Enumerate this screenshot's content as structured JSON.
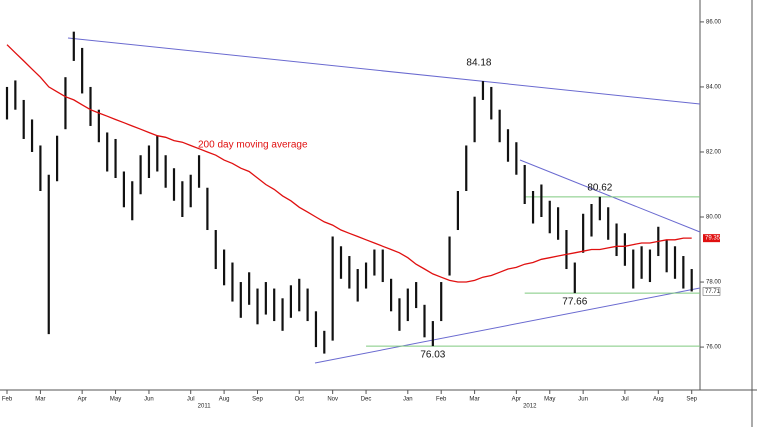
{
  "chart_data": {
    "type": "highlow",
    "categories": [
      "Feb",
      null,
      null,
      null,
      "Mar",
      null,
      null,
      null,
      null,
      "Apr",
      null,
      null,
      null,
      "May",
      null,
      null,
      null,
      "Jun",
      null,
      null,
      null,
      null,
      "Jul",
      null,
      null,
      null,
      "Aug",
      null,
      null,
      null,
      "Sep",
      null,
      null,
      null,
      null,
      "Oct",
      null,
      null,
      null,
      "Nov",
      null,
      null,
      null,
      "Dec",
      null,
      null,
      null,
      null,
      "Jan",
      null,
      null,
      null,
      "Feb",
      null,
      null,
      null,
      "Mar",
      null,
      null,
      null,
      null,
      "Apr",
      null,
      null,
      null,
      "May",
      null,
      null,
      null,
      "Jun",
      null,
      null,
      null,
      null,
      "Jul",
      null,
      null,
      null,
      "Aug",
      null,
      null,
      null,
      "Sep"
    ],
    "year_labels": [
      "2011",
      "2012"
    ],
    "high": [
      84.0,
      84.2,
      83.6,
      83.0,
      82.2,
      81.3,
      82.5,
      84.3,
      85.7,
      85.2,
      84.0,
      83.3,
      82.6,
      82.4,
      81.4,
      81.1,
      81.9,
      82.2,
      82.5,
      81.9,
      81.5,
      81.1,
      81.3,
      81.9,
      80.9,
      79.6,
      79.0,
      78.6,
      78.0,
      78.3,
      77.8,
      78.0,
      77.8,
      77.5,
      77.9,
      78.1,
      77.8,
      77.1,
      76.5,
      79.4,
      79.1,
      78.8,
      78.4,
      78.6,
      79.0,
      79.0,
      78.1,
      77.5,
      77.8,
      78.0,
      77.3,
      76.8,
      78.0,
      79.4,
      80.8,
      82.2,
      83.7,
      84.18,
      84.0,
      83.3,
      82.7,
      82.3,
      81.6,
      80.8,
      81.0,
      80.5,
      80.3,
      79.6,
      78.6,
      80.1,
      80.4,
      80.62,
      80.3,
      79.8,
      79.5,
      79.0,
      79.1,
      79.0,
      79.7,
      79.3,
      79.1,
      78.8,
      78.4
    ],
    "low": [
      83.0,
      83.3,
      82.4,
      82.0,
      80.8,
      76.4,
      81.1,
      82.7,
      84.8,
      83.8,
      82.8,
      82.3,
      81.4,
      81.2,
      80.3,
      79.9,
      80.7,
      81.2,
      81.4,
      80.9,
      80.5,
      80.0,
      80.3,
      80.9,
      79.6,
      78.4,
      77.9,
      77.4,
      76.9,
      77.3,
      76.7,
      77.0,
      76.8,
      76.5,
      76.9,
      77.1,
      76.8,
      76.0,
      75.8,
      76.2,
      78.1,
      77.8,
      77.4,
      77.8,
      78.2,
      78.0,
      77.1,
      76.5,
      76.8,
      77.2,
      76.3,
      76.03,
      76.8,
      78.2,
      79.6,
      80.8,
      82.3,
      83.6,
      83.0,
      82.3,
      81.7,
      81.3,
      80.4,
      79.8,
      80.0,
      79.5,
      79.3,
      78.4,
      77.66,
      78.9,
      79.4,
      79.9,
      79.3,
      78.8,
      78.5,
      77.8,
      78.1,
      78.0,
      78.8,
      78.3,
      78.1,
      77.8,
      77.71
    ],
    "series": [
      {
        "name": "200 day moving average",
        "color": "#e01010",
        "values": [
          85.3,
          85.05,
          84.8,
          84.55,
          84.3,
          84.0,
          83.85,
          83.7,
          83.6,
          83.45,
          83.3,
          83.2,
          83.1,
          83.0,
          82.9,
          82.8,
          82.7,
          82.6,
          82.5,
          82.45,
          82.35,
          82.3,
          82.2,
          82.1,
          82.0,
          81.9,
          81.75,
          81.65,
          81.5,
          81.4,
          81.2,
          81.0,
          80.85,
          80.65,
          80.5,
          80.3,
          80.15,
          80.0,
          79.85,
          79.75,
          79.6,
          79.5,
          79.4,
          79.3,
          79.2,
          79.1,
          79.0,
          78.9,
          78.75,
          78.55,
          78.4,
          78.25,
          78.15,
          78.05,
          78.0,
          78.0,
          78.05,
          78.15,
          78.2,
          78.3,
          78.4,
          78.45,
          78.55,
          78.6,
          78.7,
          78.75,
          78.8,
          78.85,
          78.9,
          78.95,
          79.0,
          79.0,
          79.05,
          79.1,
          79.1,
          79.15,
          79.2,
          79.2,
          79.25,
          79.3,
          79.3,
          79.35,
          79.35
        ]
      }
    ],
    "levels": [
      80.62,
      77.66,
      76.03
    ],
    "level_color": "#7fc97f",
    "bar_color": "#111111",
    "ylim": [
      74.68,
      86.52
    ],
    "yticks": [
      {
        "value": 76,
        "label": "76.00"
      },
      {
        "value": 78,
        "label": "78.00"
      },
      {
        "value": 80,
        "label": "80.00"
      },
      {
        "value": 82,
        "label": "82.00"
      },
      {
        "value": 84,
        "label": "84.00"
      },
      {
        "value": 86,
        "label": "86.00"
      }
    ]
  }
}
